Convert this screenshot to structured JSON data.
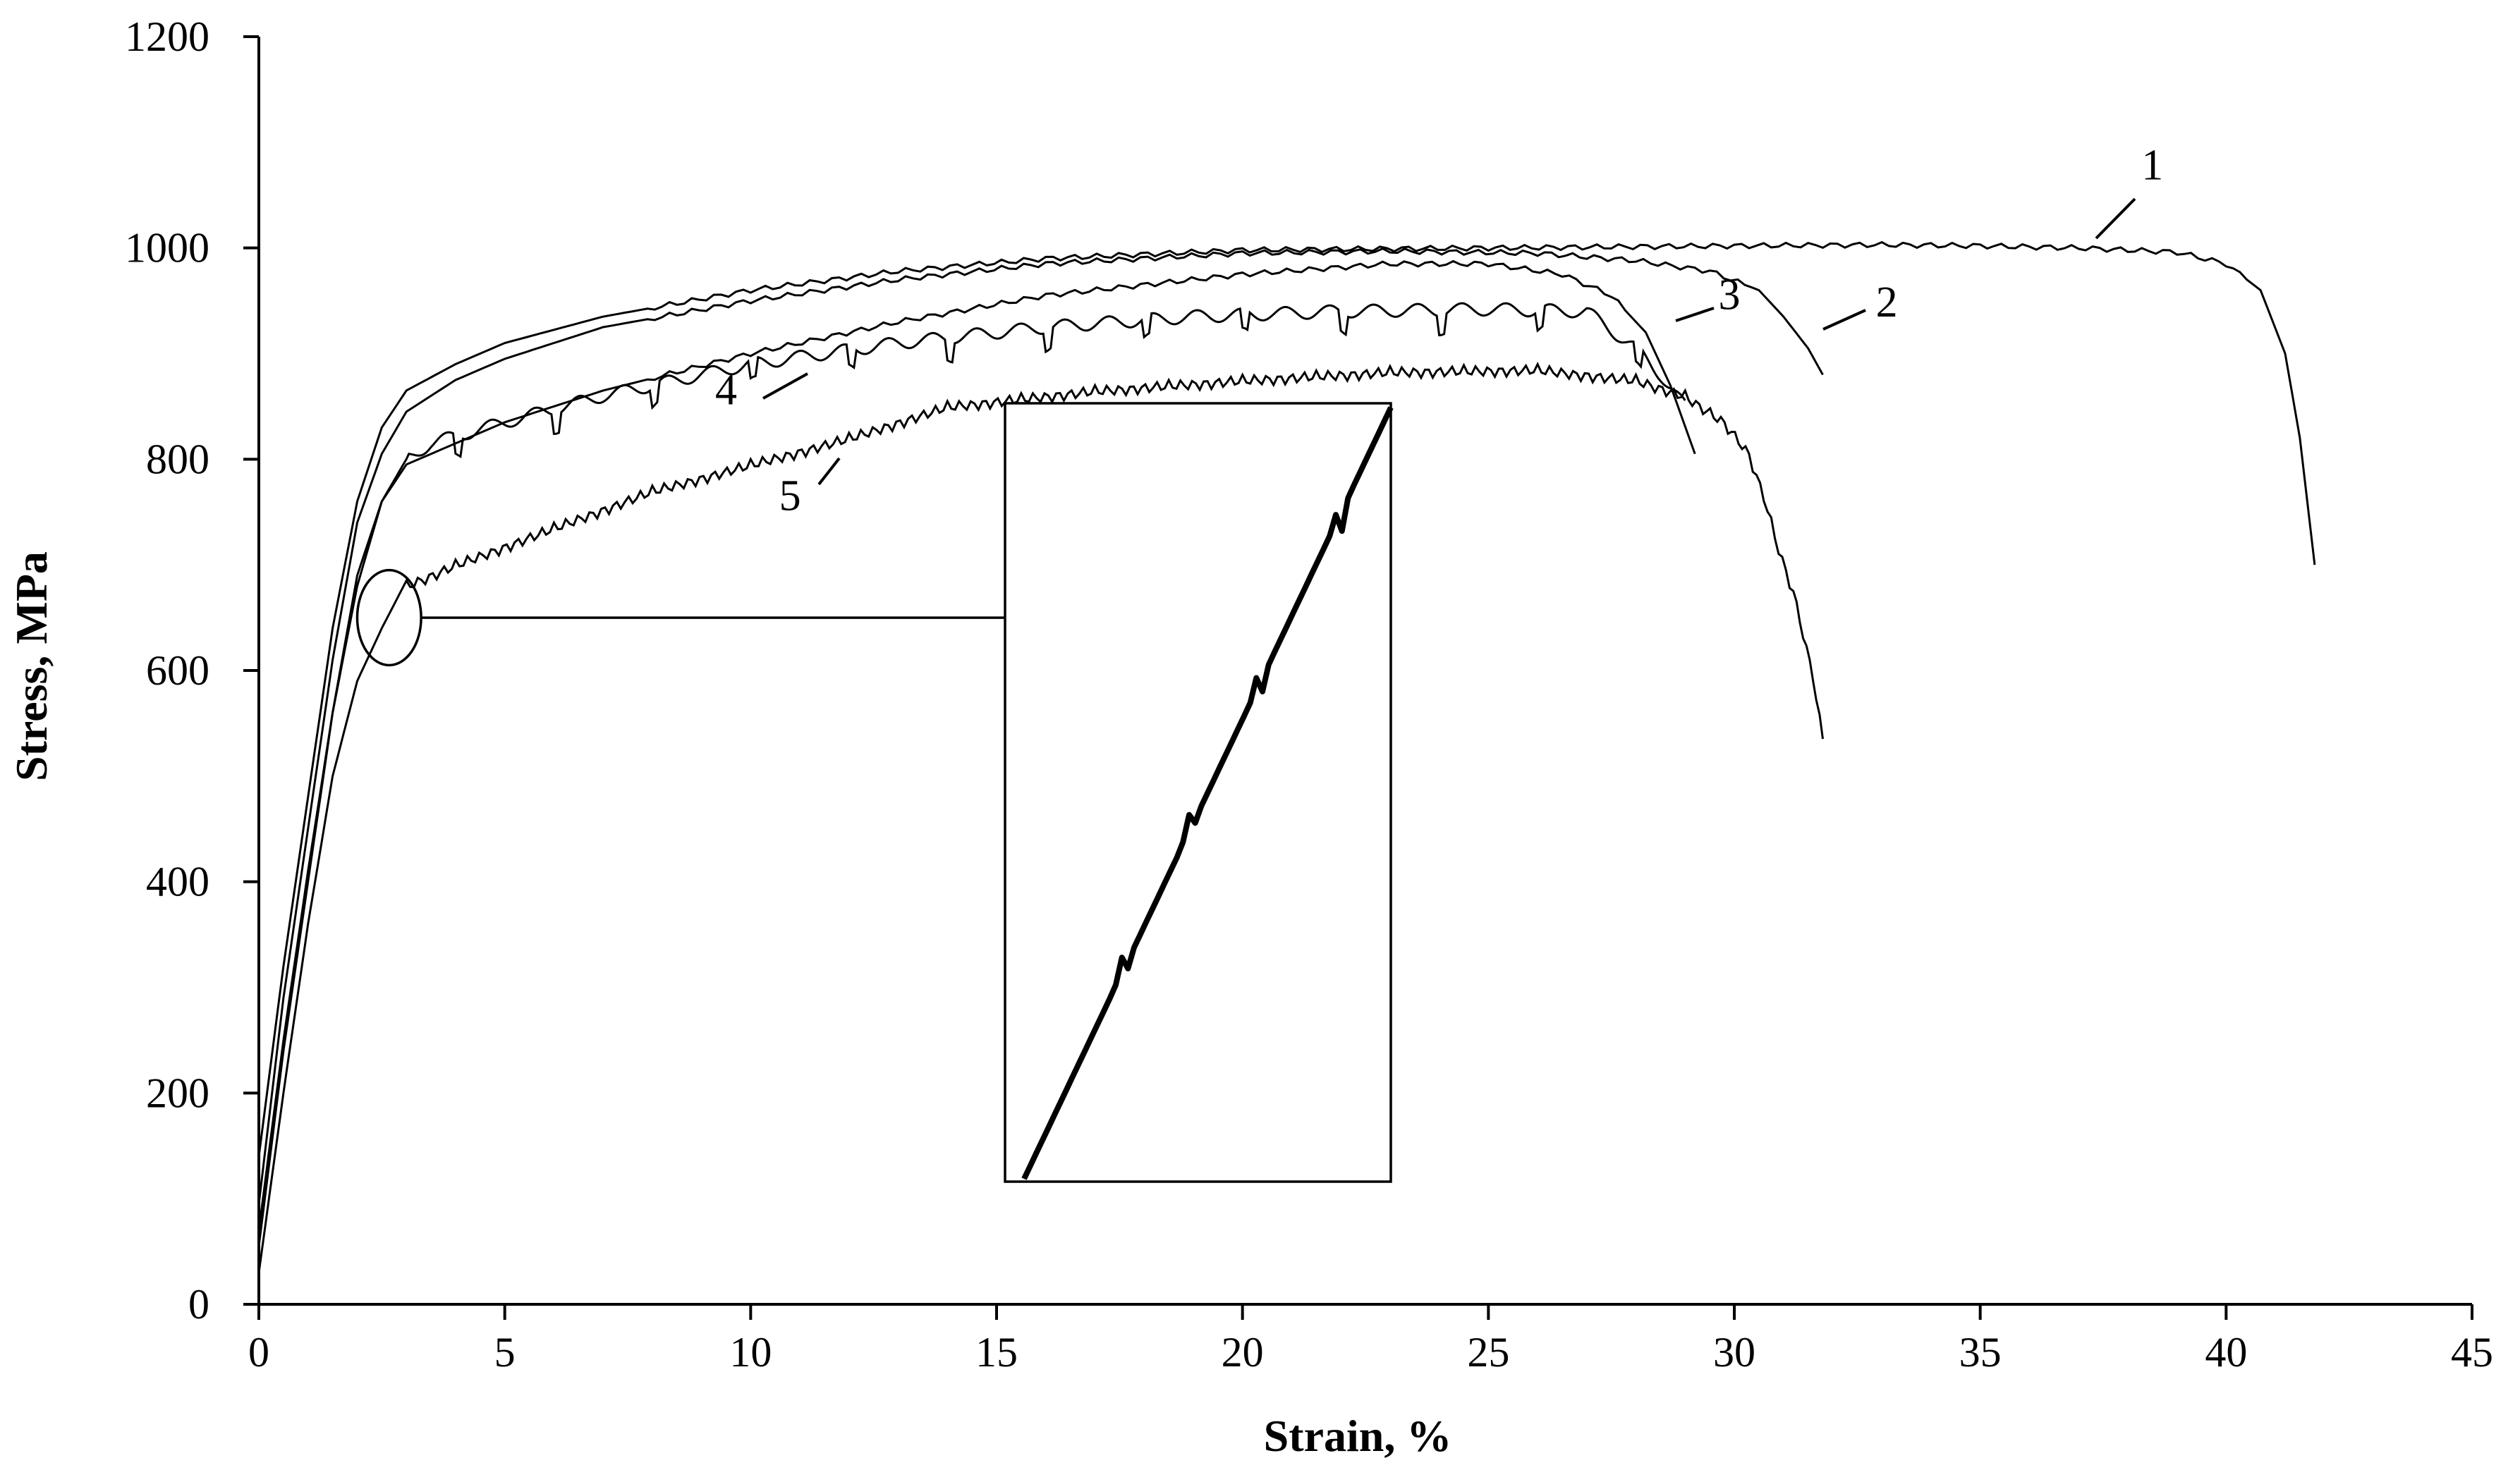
{
  "chart_data": {
    "type": "line",
    "xlabel": "Strain, %",
    "ylabel": "Stress, MPa",
    "xlim": [
      0,
      45
    ],
    "ylim": [
      0,
      1200
    ],
    "x_ticks": [
      0,
      5,
      10,
      15,
      20,
      25,
      30,
      35,
      40,
      45
    ],
    "y_ticks": [
      0,
      200,
      400,
      600,
      800,
      1000,
      1200
    ],
    "grid": false,
    "legend": "none",
    "series": [
      {
        "name": "1",
        "serrated": false,
        "points": [
          [
            0,
            140
          ],
          [
            0.5,
            320
          ],
          [
            1,
            480
          ],
          [
            1.5,
            640
          ],
          [
            2,
            760
          ],
          [
            2.5,
            830
          ],
          [
            3,
            865
          ],
          [
            4,
            890
          ],
          [
            5,
            910
          ],
          [
            7,
            935
          ],
          [
            10,
            960
          ],
          [
            13,
            978
          ],
          [
            16,
            990
          ],
          [
            20,
            998
          ],
          [
            25,
            1000
          ],
          [
            30,
            1002
          ],
          [
            33,
            1003
          ],
          [
            35,
            1002
          ],
          [
            37,
            1000
          ],
          [
            39,
            996
          ],
          [
            40,
            985
          ],
          [
            40.7,
            960
          ],
          [
            41.2,
            900
          ],
          [
            41.5,
            820
          ],
          [
            41.8,
            700
          ]
        ]
      },
      {
        "name": "2",
        "serrated": false,
        "points": [
          [
            0,
            95
          ],
          [
            0.5,
            290
          ],
          [
            1,
            450
          ],
          [
            1.5,
            610
          ],
          [
            2,
            740
          ],
          [
            2.5,
            805
          ],
          [
            3,
            845
          ],
          [
            4,
            875
          ],
          [
            5,
            895
          ],
          [
            7,
            925
          ],
          [
            10,
            950
          ],
          [
            13,
            970
          ],
          [
            16,
            985
          ],
          [
            20,
            995
          ],
          [
            23,
            997
          ],
          [
            26,
            995
          ],
          [
            28,
            988
          ],
          [
            29.5,
            978
          ],
          [
            30.5,
            960
          ],
          [
            31,
            935
          ],
          [
            31.5,
            905
          ],
          [
            31.8,
            880
          ]
        ]
      },
      {
        "name": "3",
        "serrated": false,
        "points": [
          [
            0,
            55
          ],
          [
            0.5,
            240
          ],
          [
            1,
            400
          ],
          [
            1.5,
            560
          ],
          [
            2,
            690
          ],
          [
            2.5,
            760
          ],
          [
            3,
            795
          ],
          [
            4,
            815
          ],
          [
            5,
            835
          ],
          [
            7,
            865
          ],
          [
            10,
            900
          ],
          [
            13,
            930
          ],
          [
            16,
            955
          ],
          [
            20,
            975
          ],
          [
            23,
            985
          ],
          [
            25,
            985
          ],
          [
            26.5,
            975
          ],
          [
            27.5,
            955
          ],
          [
            28.2,
            920
          ],
          [
            28.7,
            870
          ],
          [
            29.2,
            805
          ]
        ]
      },
      {
        "name": "4",
        "serrated": true,
        "points": [
          [
            0,
            70
          ],
          [
            0.5,
            250
          ],
          [
            1,
            410
          ],
          [
            1.5,
            560
          ],
          [
            2,
            680
          ],
          [
            2.5,
            760
          ],
          [
            3,
            800
          ],
          [
            3.5,
            815
          ],
          [
            5,
            835
          ],
          [
            7,
            860
          ],
          [
            10,
            890
          ],
          [
            13,
            910
          ],
          [
            16,
            925
          ],
          [
            19,
            935
          ],
          [
            22,
            940
          ],
          [
            25,
            942
          ],
          [
            27,
            940
          ],
          [
            27.5,
            922
          ],
          [
            28,
            905
          ],
          [
            28.5,
            880
          ],
          [
            29,
            850
          ]
        ]
      },
      {
        "name": "5",
        "serrated": true,
        "points": [
          [
            0,
            30
          ],
          [
            0.5,
            200
          ],
          [
            1,
            360
          ],
          [
            1.5,
            500
          ],
          [
            2,
            590
          ],
          [
            2.5,
            640
          ],
          [
            3,
            685
          ],
          [
            4,
            705
          ],
          [
            6,
            740
          ],
          [
            8,
            775
          ],
          [
            10,
            800
          ],
          [
            12,
            825
          ],
          [
            14,
            855
          ],
          [
            17,
            870
          ],
          [
            20,
            880
          ],
          [
            23,
            888
          ],
          [
            26,
            890
          ],
          [
            28,
            880
          ],
          [
            29,
            865
          ],
          [
            29.8,
            840
          ],
          [
            30.3,
            810
          ],
          [
            30.6,
            770
          ],
          [
            30.9,
            720
          ],
          [
            31.2,
            680
          ],
          [
            31.4,
            640
          ],
          [
            31.6,
            600
          ],
          [
            31.8,
            540
          ]
        ]
      }
    ],
    "annotations": [
      {
        "label": "1",
        "x": 38.5,
        "y": 1065
      },
      {
        "label": "2",
        "x": 33.1,
        "y": 935
      },
      {
        "label": "3",
        "x": 29.9,
        "y": 942
      },
      {
        "label": "4",
        "x": 9.5,
        "y": 852
      },
      {
        "label": "5",
        "x": 10.8,
        "y": 752
      }
    ],
    "zoom_region": {
      "x": [
        2.0,
        3.3
      ],
      "y": [
        605,
        695
      ]
    }
  }
}
